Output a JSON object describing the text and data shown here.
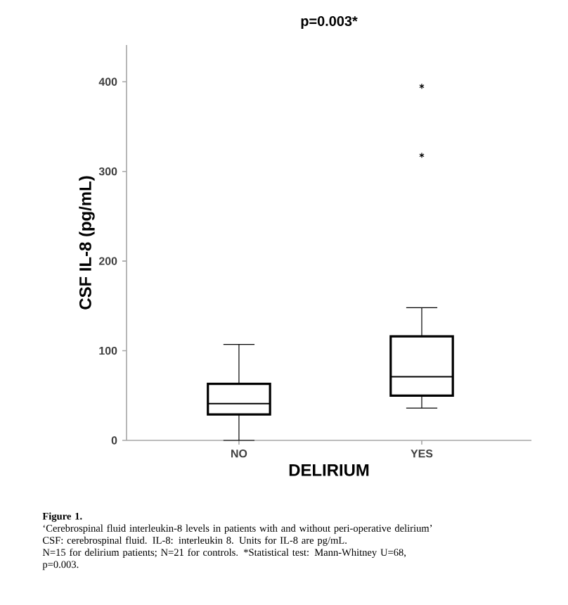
{
  "chart_data": {
    "type": "box",
    "title": "p=0.003*",
    "xlabel": "DELIRIUM",
    "ylabel": "CSF IL-8 (pg/mL)",
    "categories": [
      "NO",
      "YES"
    ],
    "boxes": [
      {
        "low": 0,
        "q1": 29,
        "median": 41,
        "q3": 63,
        "high": 107
      },
      {
        "low": 36,
        "q1": 50,
        "median": 71,
        "q3": 116,
        "high": 148,
        "outliers": [
          318,
          395
        ]
      }
    ],
    "color": "#000000",
    "marker": "star",
    "grid": false,
    "ylim": [
      0,
      441
    ],
    "yticks": [
      0,
      100,
      200,
      300,
      400
    ],
    "annotations": [
      "Figure 1.",
      "‘Cerebrospinal fluid interleukin-8 levels in patients with and without peri-operative delirium’",
      "CSF: cerebrospinal fluid. IL-8: interleukin 8. Units for IL-8 are pg/mL.",
      "N=15 for delirium patients; N=21 for controls. *Statistical test: Mann-Whitney U=68, p=0.003."
    ]
  }
}
